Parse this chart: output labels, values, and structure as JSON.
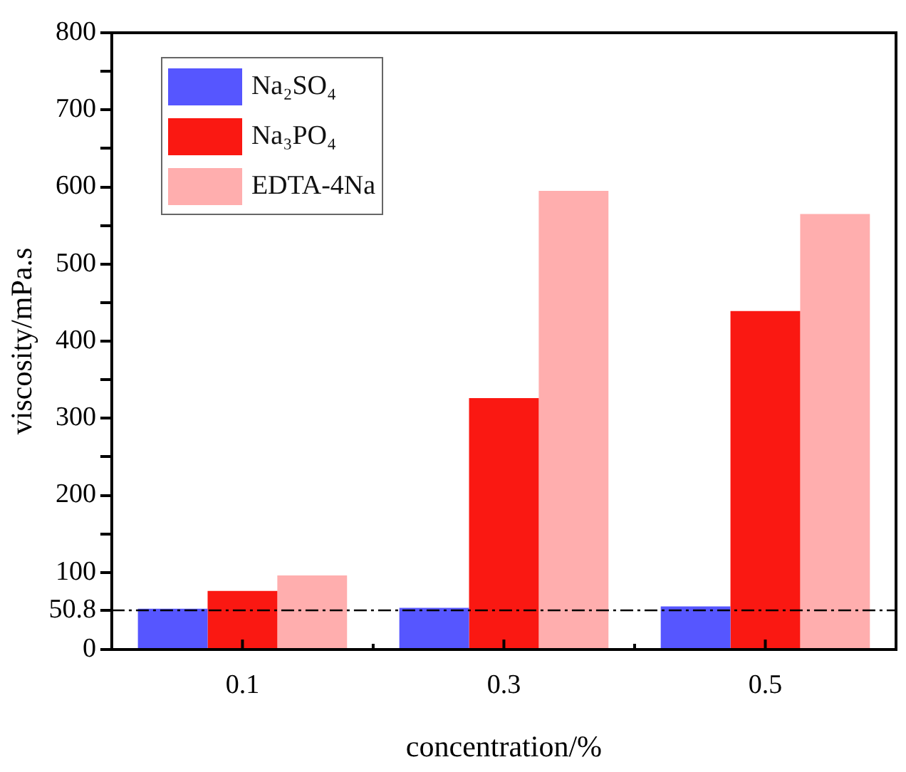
{
  "chart_data": {
    "type": "bar",
    "xlabel": "concentration/%",
    "ylabel": "viscosity/mPa.s",
    "categories": [
      "0.1",
      "0.3",
      "0.5"
    ],
    "series": [
      {
        "name": "Na₂SO₄",
        "color": "#5656ff",
        "values": [
          53,
          54,
          56
        ]
      },
      {
        "name": "Na₃PO₄",
        "color": "#fa1812",
        "values": [
          76,
          326,
          439
        ]
      },
      {
        "name": "EDTA-4Na",
        "color": "#ffaeae",
        "values": [
          96,
          595,
          565
        ]
      }
    ],
    "ylim": [
      0,
      800
    ],
    "yticks": [
      0,
      50.8,
      100,
      {
        "value": 150,
        "label": null
      },
      200,
      {
        "value": 250,
        "label": null
      },
      300,
      {
        "value": 350,
        "label": null
      },
      400,
      {
        "value": 450,
        "label": null
      },
      500,
      {
        "value": 550,
        "label": null
      },
      600,
      {
        "value": 650,
        "label": null
      },
      700,
      {
        "value": 750,
        "label": null
      },
      800
    ],
    "ref_lines": [
      {
        "axis": "y",
        "value": 50.8,
        "color": "#000000",
        "line_style": "dashdot"
      }
    ],
    "grid": false,
    "legend": "top left"
  }
}
